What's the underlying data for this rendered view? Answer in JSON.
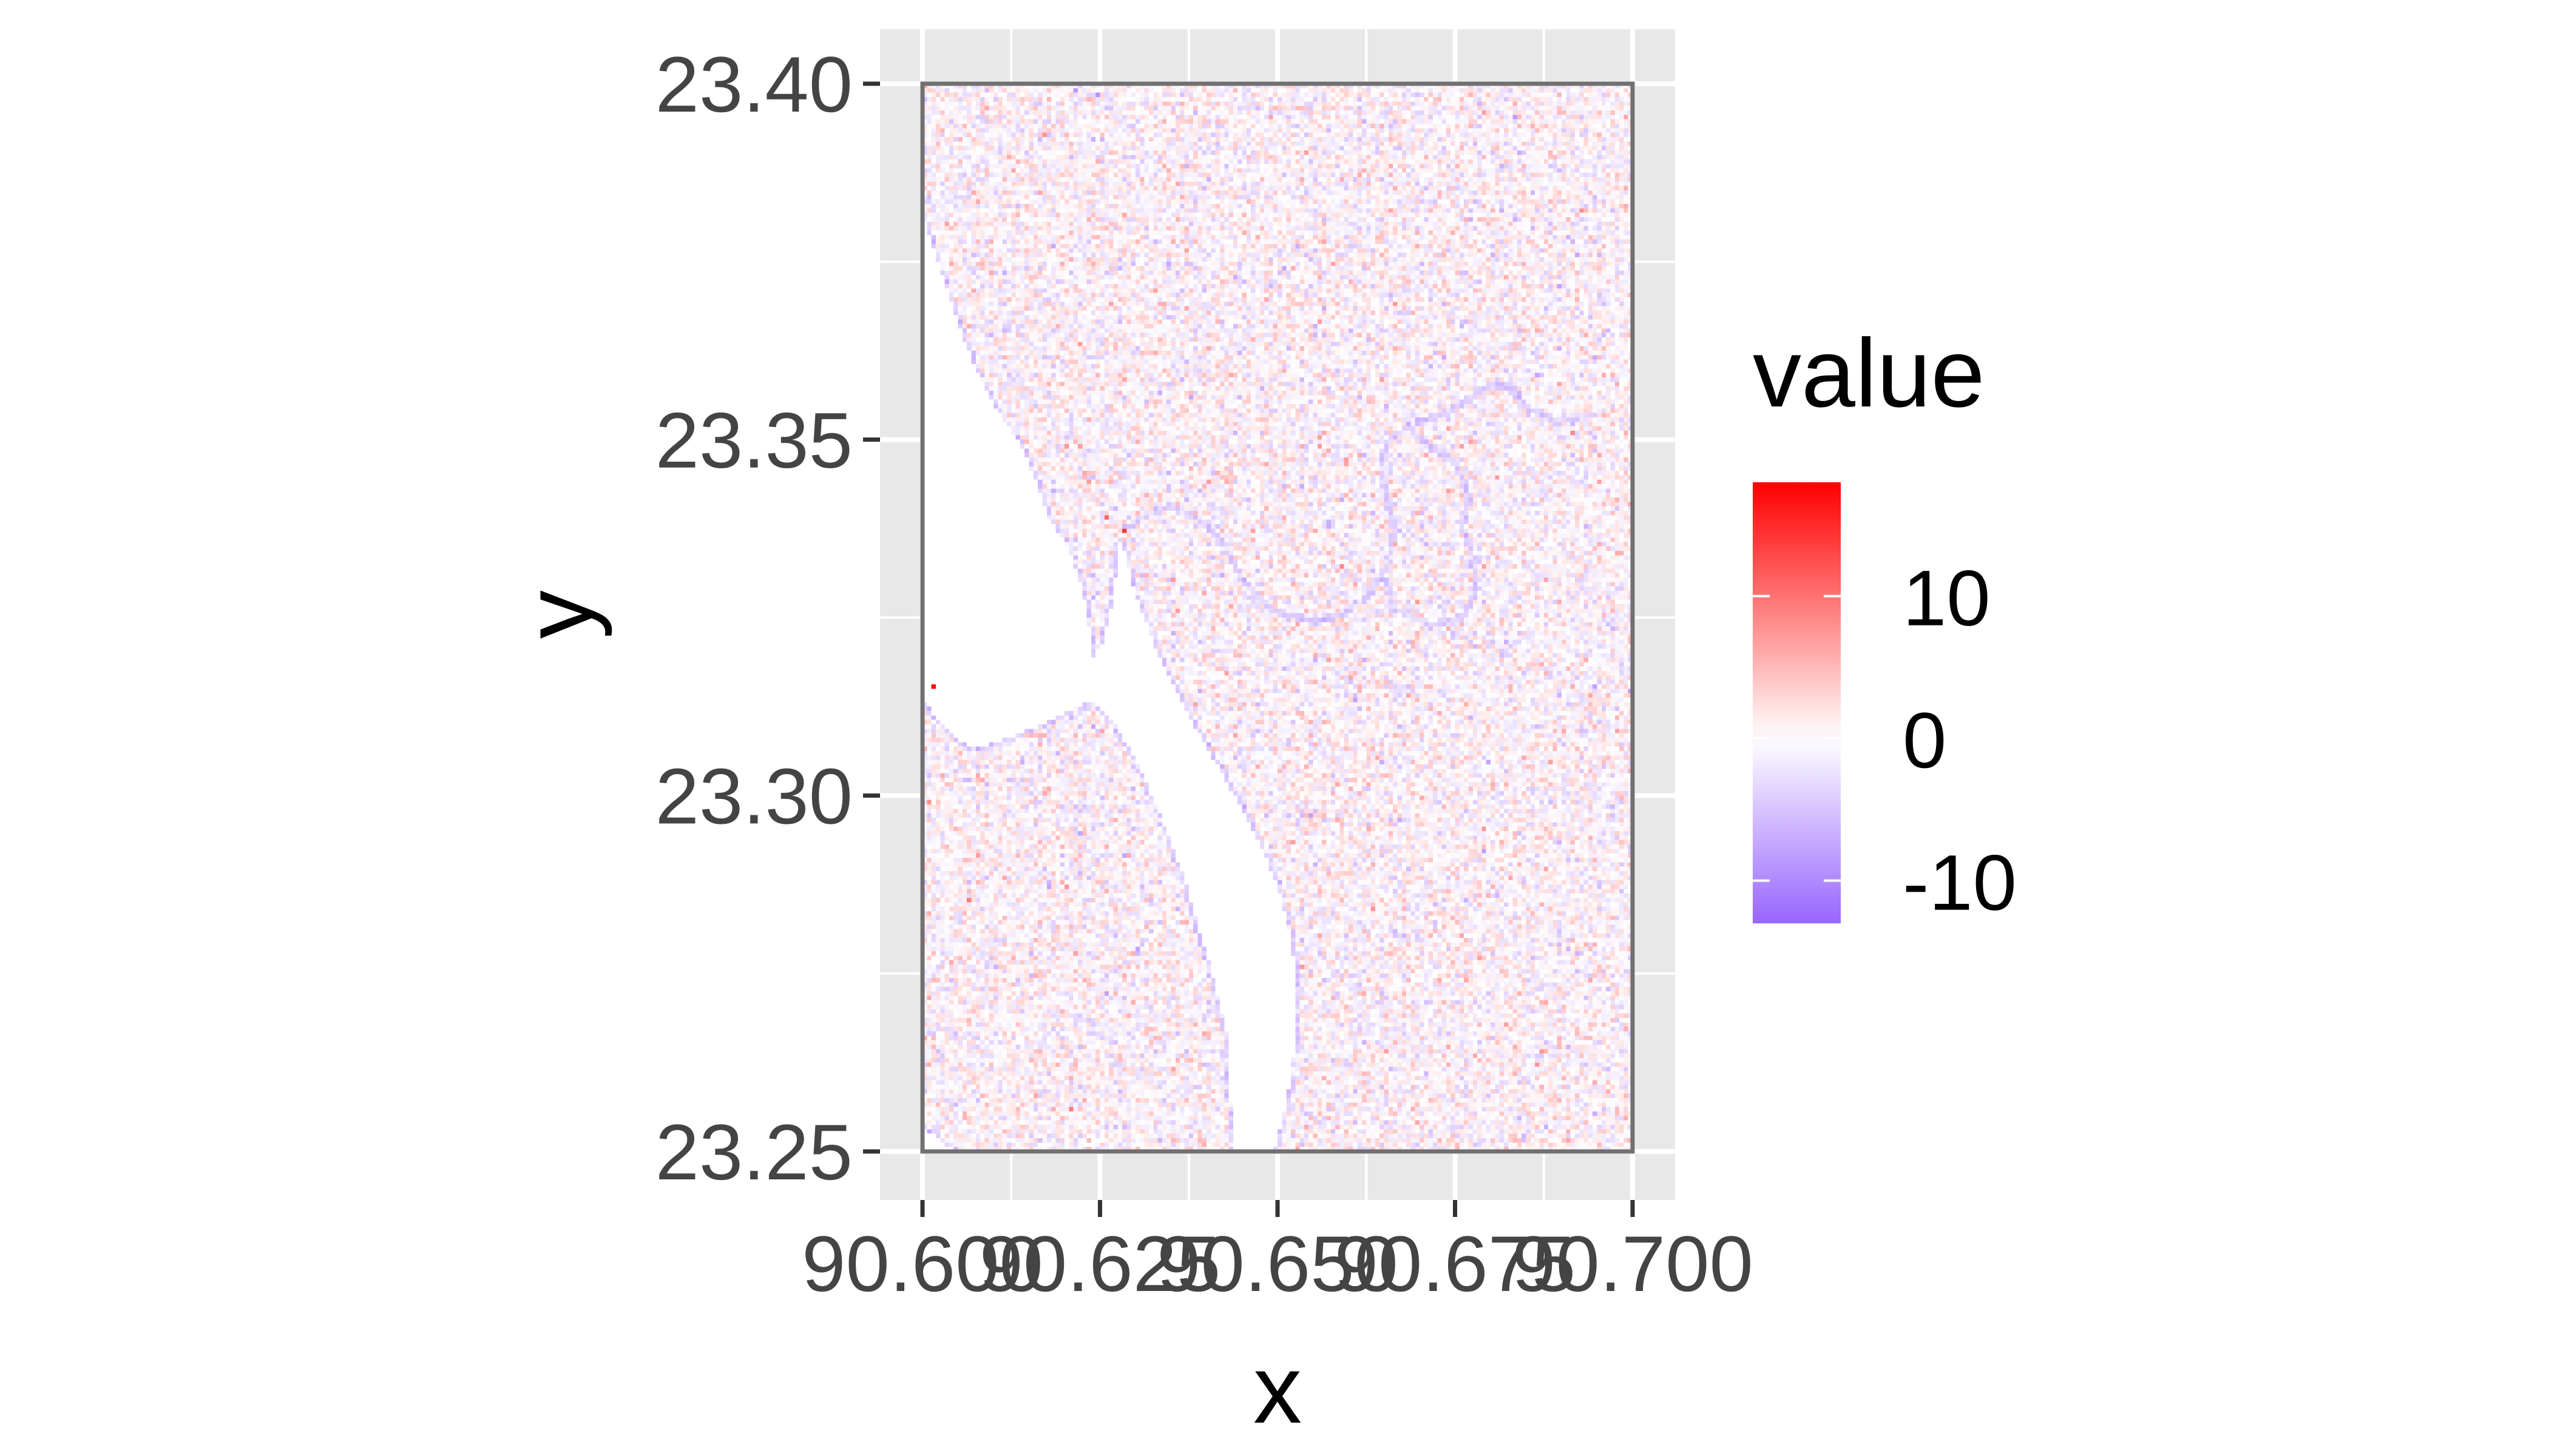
{
  "chart_data": {
    "type": "heatmap",
    "title": "",
    "xlabel": "x",
    "ylabel": "y",
    "xlim": [
      90.6,
      90.7
    ],
    "ylim": [
      23.25,
      23.4
    ],
    "x_ticks": [
      90.6,
      90.625,
      90.65,
      90.675,
      90.7
    ],
    "x_tick_labels": [
      "90.600",
      "90.625",
      "90.650",
      "90.675",
      "90.700"
    ],
    "y_ticks": [
      23.25,
      23.3,
      23.35,
      23.4
    ],
    "y_tick_labels": [
      "23.25",
      "23.30",
      "23.35",
      "23.40"
    ],
    "grid": true,
    "panel_background": "#e8e8e8",
    "legend": {
      "title": "value",
      "position": "right",
      "breaks": [
        10,
        0,
        -10
      ],
      "labels": [
        "10",
        "0",
        "-10"
      ],
      "range": [
        -13,
        18
      ],
      "colors": {
        "low": "#9966ff",
        "mid": "#ffffff",
        "high": "#ff0000"
      }
    },
    "description_values": {
      "noise_sd": 2.2,
      "water_value": 0,
      "edge_value": -4
    },
    "water_regions": [
      {
        "name": "river-channel",
        "polygon": [
          [
            90.6,
            23.3815
          ],
          [
            90.6032,
            23.372
          ],
          [
            90.6055,
            23.365
          ],
          [
            90.6075,
            23.36
          ],
          [
            90.6105,
            23.354
          ],
          [
            90.6135,
            23.35
          ],
          [
            90.6155,
            23.3455
          ],
          [
            90.6175,
            23.3395
          ],
          [
            90.6205,
            23.335
          ],
          [
            90.6225,
            23.329
          ],
          [
            90.6237,
            23.3225
          ],
          [
            90.6238,
            23.319
          ],
          [
            90.6255,
            23.3215
          ],
          [
            90.627,
            23.328
          ],
          [
            90.6275,
            23.3345
          ],
          [
            90.628,
            23.3365
          ],
          [
            90.6295,
            23.33
          ],
          [
            90.633,
            23.32
          ],
          [
            90.6365,
            23.313
          ],
          [
            90.6405,
            23.306
          ],
          [
            90.6445,
            23.299
          ],
          [
            90.648,
            23.292
          ],
          [
            90.6505,
            23.286
          ],
          [
            90.652,
            23.279
          ],
          [
            90.6528,
            23.273
          ],
          [
            90.6525,
            23.265
          ],
          [
            90.6515,
            23.258
          ],
          [
            90.6495,
            23.25
          ],
          [
            90.644,
            23.25
          ],
          [
            90.6435,
            23.256
          ],
          [
            90.643,
            23.266
          ],
          [
            90.6405,
            23.276
          ],
          [
            90.637,
            23.288
          ],
          [
            90.634,
            23.296
          ],
          [
            90.631,
            23.303
          ],
          [
            90.6275,
            23.3095
          ],
          [
            90.6235,
            23.3135
          ],
          [
            90.618,
            23.3105
          ],
          [
            90.612,
            23.308
          ],
          [
            90.607,
            23.3065
          ],
          [
            90.6035,
            23.309
          ],
          [
            90.6,
            23.3135
          ]
        ]
      },
      {
        "name": "channel-sliver-bottom-left",
        "polygon": [
          [
            90.6,
            23.2535
          ],
          [
            90.6045,
            23.25
          ],
          [
            90.6,
            23.25
          ]
        ]
      }
    ],
    "edge_lines": [
      {
        "name": "meander-channel",
        "points": [
          [
            90.6285,
            23.3375
          ],
          [
            90.6315,
            23.3395
          ],
          [
            90.635,
            23.3405
          ],
          [
            90.6395,
            23.3385
          ],
          [
            90.643,
            23.3345
          ],
          [
            90.6455,
            23.3295
          ],
          [
            90.6495,
            23.326
          ],
          [
            90.655,
            23.3245
          ],
          [
            90.6595,
            23.3255
          ],
          [
            90.663,
            23.3285
          ],
          [
            90.6655,
            23.3325
          ],
          [
            90.6665,
            23.3375
          ],
          [
            90.6655,
            23.3415
          ],
          [
            90.6645,
            23.3455
          ],
          [
            90.6655,
            23.3495
          ],
          [
            90.6685,
            23.352
          ],
          [
            90.673,
            23.3535
          ],
          [
            90.677,
            23.3555
          ],
          [
            90.6795,
            23.3575
          ],
          [
            90.6825,
            23.3575
          ],
          [
            90.6845,
            23.3555
          ],
          [
            90.6865,
            23.3535
          ],
          [
            90.689,
            23.3525
          ],
          [
            90.6915,
            23.353
          ],
          [
            90.6945,
            23.3535
          ]
        ]
      },
      {
        "name": "meander-loop",
        "points": [
          [
            90.6685,
            23.352
          ],
          [
            90.671,
            23.3495
          ],
          [
            90.675,
            23.3465
          ],
          [
            90.677,
            23.342
          ],
          [
            90.676,
            23.338
          ],
          [
            90.6775,
            23.3335
          ],
          [
            90.678,
            23.329
          ],
          [
            90.676,
            23.325
          ],
          [
            90.6715,
            23.324
          ],
          [
            90.6665,
            23.3262
          ],
          [
            90.6645,
            23.3315
          ]
        ]
      }
    ],
    "hot_spots": [
      [
        90.6015,
        23.3155,
        17
      ],
      [
        90.6285,
        23.3372,
        14
      ],
      [
        90.6262,
        23.3392,
        11
      ],
      [
        90.6068,
        23.2855,
        9
      ],
      [
        90.6012,
        23.2992,
        8
      ],
      [
        90.6237,
        23.344,
        7
      ]
    ]
  }
}
